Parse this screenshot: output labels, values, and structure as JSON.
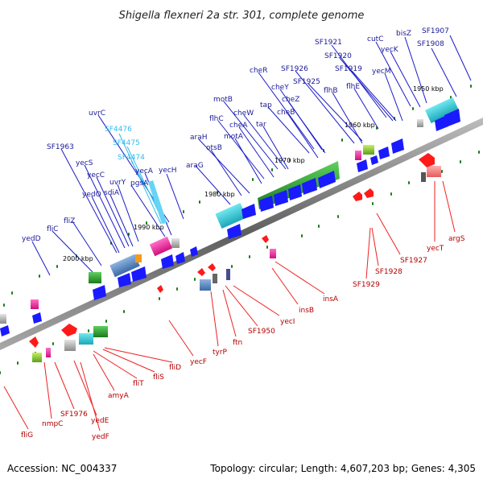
{
  "title": "Shigella flexneri 2a str. 301, complete genome",
  "footer": {
    "accession": "Accession: NC_004337",
    "summary": "Topology: circular; Length: 4,607,203 bp; Genes: 4,305"
  },
  "colors": {
    "forward": "#1a1aff",
    "reverse": "#ff1a1a",
    "label_blue": "#1a1a99",
    "label_red": "#b30000",
    "label_cyan": "#33bbee",
    "backbone": "#7a7a7a",
    "tick": "#1a7a1a"
  },
  "kbp_markers": [
    {
      "pos_kbp": 1950,
      "label": "1950 kbp"
    },
    {
      "pos_kbp": 1960,
      "label": "1960 kbp"
    },
    {
      "pos_kbp": 1970,
      "label": "1970 kbp"
    },
    {
      "pos_kbp": 1980,
      "label": "1980 kbp"
    },
    {
      "pos_kbp": 1990,
      "label": "1990 kbp"
    },
    {
      "pos_kbp": 2000,
      "label": "2000 kbp"
    }
  ],
  "genes_top": [
    {
      "name": "SF1907",
      "color": "blue"
    },
    {
      "name": "SF1908",
      "color": "blue"
    },
    {
      "name": "bisZ",
      "color": "blue"
    },
    {
      "name": "cutC",
      "color": "blue"
    },
    {
      "name": "yecK",
      "color": "blue"
    },
    {
      "name": "SF1921",
      "color": "blue"
    },
    {
      "name": "SF1920",
      "color": "blue"
    },
    {
      "name": "SF1919",
      "color": "blue"
    },
    {
      "name": "yecM",
      "color": "blue"
    },
    {
      "name": "flhE",
      "color": "blue"
    },
    {
      "name": "SF1926",
      "color": "blue"
    },
    {
      "name": "SF1925",
      "color": "blue"
    },
    {
      "name": "flhB",
      "color": "blue"
    },
    {
      "name": "cheR",
      "color": "blue"
    },
    {
      "name": "cheY",
      "color": "blue"
    },
    {
      "name": "tap",
      "color": "blue"
    },
    {
      "name": "cheZ",
      "color": "blue"
    },
    {
      "name": "cheB",
      "color": "blue"
    },
    {
      "name": "motB",
      "color": "blue"
    },
    {
      "name": "cheW",
      "color": "blue"
    },
    {
      "name": "flhC",
      "color": "blue"
    },
    {
      "name": "cheA",
      "color": "blue"
    },
    {
      "name": "tar",
      "color": "blue"
    },
    {
      "name": "motA",
      "color": "blue"
    },
    {
      "name": "uvrC",
      "color": "blue"
    },
    {
      "name": "SF4476",
      "color": "cyan"
    },
    {
      "name": "SF4475",
      "color": "cyan"
    },
    {
      "name": "SF4474",
      "color": "cyan"
    },
    {
      "name": "araH",
      "color": "blue"
    },
    {
      "name": "otsB",
      "color": "blue"
    },
    {
      "name": "araG",
      "color": "blue"
    },
    {
      "name": "SF1963",
      "color": "blue"
    },
    {
      "name": "yecS",
      "color": "blue"
    },
    {
      "name": "yecC",
      "color": "blue"
    },
    {
      "name": "yedO",
      "color": "blue"
    },
    {
      "name": "sdiA",
      "color": "blue"
    },
    {
      "name": "uvrY",
      "color": "blue"
    },
    {
      "name": "pgsA",
      "color": "blue"
    },
    {
      "name": "yecA",
      "color": "blue"
    },
    {
      "name": "yecH",
      "color": "blue"
    },
    {
      "name": "fliZ",
      "color": "blue"
    },
    {
      "name": "fliC",
      "color": "blue"
    },
    {
      "name": "yedD",
      "color": "blue"
    }
  ],
  "genes_bottom": [
    {
      "name": "argS"
    },
    {
      "name": "yecT"
    },
    {
      "name": "SF1927"
    },
    {
      "name": "SF1928"
    },
    {
      "name": "SF1929"
    },
    {
      "name": "insA"
    },
    {
      "name": "insB"
    },
    {
      "name": "yecI"
    },
    {
      "name": "SF1950"
    },
    {
      "name": "ftn"
    },
    {
      "name": "tyrP"
    },
    {
      "name": "yecF"
    },
    {
      "name": "fliD"
    },
    {
      "name": "fliS"
    },
    {
      "name": "fliT"
    },
    {
      "name": "amyA"
    },
    {
      "name": "SF1976"
    },
    {
      "name": "yedE"
    },
    {
      "name": "yedF"
    },
    {
      "name": "nmpC"
    },
    {
      "name": "fliG"
    }
  ]
}
